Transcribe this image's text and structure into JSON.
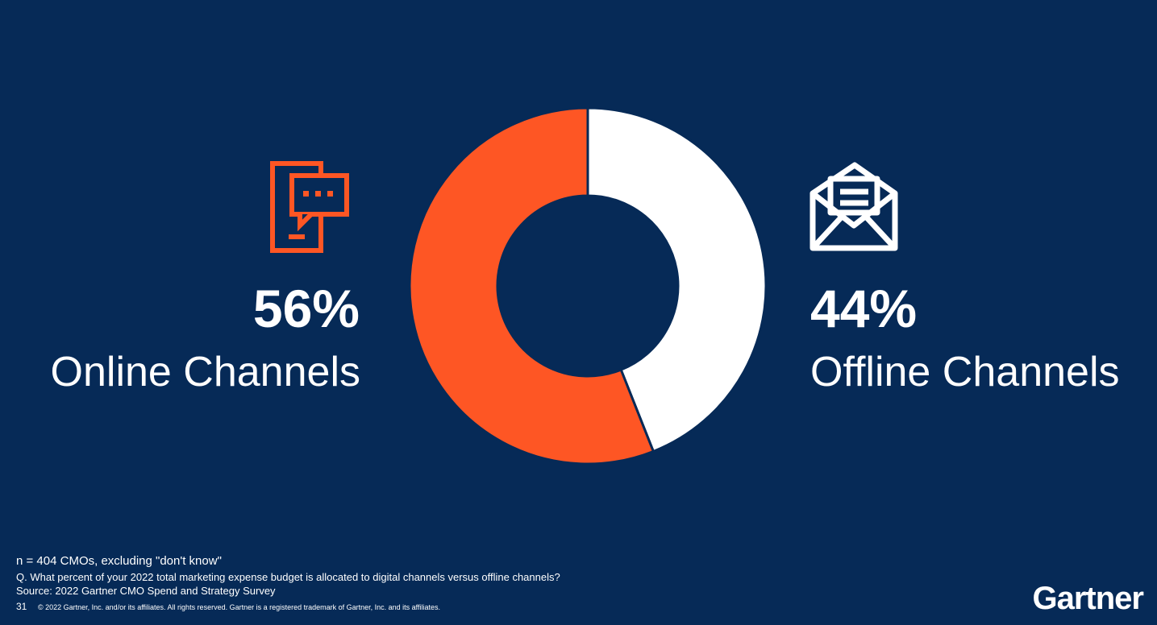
{
  "chart_data": {
    "type": "pie",
    "categories": [
      "Online Channels",
      "Offline Channels"
    ],
    "values": [
      56,
      44
    ],
    "value_labels": [
      "56%",
      "44%"
    ],
    "colors": [
      "#fe5624",
      "#ffffff"
    ],
    "note": "n = 404 CMOs, excluding \"don't know\"",
    "question": "Q. What percent of your 2022 total marketing expense budget is allocated to digital channels versus offline channels?",
    "source": "Source: 2022 Gartner CMO Spend and Strategy Survey",
    "page_number": "31",
    "copyright": "© 2022 Gartner, Inc. and/or its affiliates. All rights reserved. Gartner is a registered trademark of Gartner, Inc. and its affiliates.",
    "logo": "Gartner"
  }
}
